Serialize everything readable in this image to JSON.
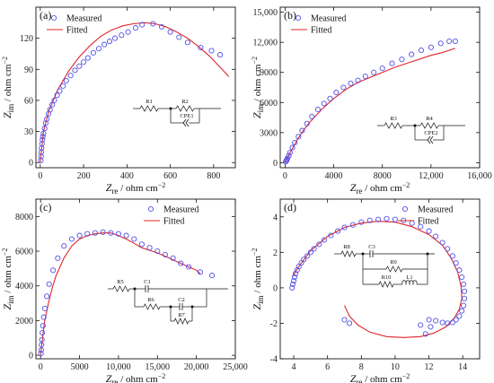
{
  "colors": {
    "measured": "#5050e8",
    "fitted": "#e0262b",
    "axis": "#111111"
  },
  "legend": {
    "measured": "Measured",
    "fitted": "Fitted"
  },
  "axes": {
    "xlabel_main": "Z",
    "xlabel_sub": "re",
    "ylabel_main": "Z",
    "ylabel_sub": "im",
    "unit": " / ohm cm",
    "unit_exp": "−2"
  },
  "chart_data": [
    {
      "panel": "(a)",
      "type": "scatter",
      "xlim": [
        -20,
        900
      ],
      "ylim": [
        -5,
        150
      ],
      "xticks": [
        0,
        200,
        400,
        600,
        800
      ],
      "yticks": [
        0,
        30,
        60,
        90,
        120
      ],
      "grid": false,
      "legend_position": "top-left",
      "series": [
        {
          "name": "Measured",
          "x": [
            3,
            4,
            5,
            6,
            8,
            10,
            12,
            15,
            20,
            25,
            30,
            38,
            45,
            55,
            65,
            78,
            90,
            105,
            120,
            140,
            160,
            180,
            200,
            220,
            245,
            270,
            295,
            320,
            345,
            375,
            405,
            440,
            470,
            520,
            560,
            600,
            640,
            680,
            740,
            790,
            830
          ],
          "y": [
            2,
            6,
            10,
            14,
            18,
            22,
            25,
            28,
            33,
            38,
            42,
            47,
            51,
            56,
            60,
            65,
            69,
            74,
            79,
            84,
            89,
            93,
            97,
            101,
            106,
            110,
            114,
            117,
            120,
            123,
            126,
            130,
            133,
            134,
            131,
            126,
            121,
            116,
            111,
            108,
            104
          ]
        },
        {
          "name": "Fitted",
          "x": [
            0,
            15,
            40,
            80,
            130,
            180,
            230,
            280,
            330,
            380,
            430,
            480,
            530,
            580,
            630,
            680,
            730,
            780,
            830,
            870
          ],
          "y": [
            0,
            30,
            50,
            70,
            88,
            102,
            113,
            122,
            128,
            132,
            134,
            135,
            134,
            131,
            126,
            120,
            112,
            103,
            92,
            83
          ]
        }
      ],
      "circuit": [
        "R1",
        "R2",
        "CPE1"
      ]
    },
    {
      "panel": "(b)",
      "type": "scatter",
      "xlim": [
        -400,
        16000
      ],
      "ylim": [
        -500,
        15500
      ],
      "xticks": [
        0,
        4000,
        8000,
        12000,
        16000
      ],
      "xticklabels": [
        "0",
        "4000",
        "8000",
        "12,000",
        "16,000"
      ],
      "yticks": [
        0,
        3000,
        6000,
        9000,
        12000,
        15000
      ],
      "yticklabels": [
        "0",
        "3000",
        "6000",
        "9000",
        "12,000",
        "15,000"
      ],
      "grid": false,
      "legend_position": "top-left",
      "series": [
        {
          "name": "Measured",
          "x": [
            50,
            100,
            150,
            200,
            300,
            400,
            600,
            800,
            1100,
            1400,
            1800,
            2200,
            2700,
            3200,
            3700,
            4200,
            4800,
            5400,
            6000,
            6600,
            7300,
            8000,
            8800,
            9600,
            10400,
            11200,
            12000,
            12800,
            13500,
            14000
          ],
          "y": [
            100,
            200,
            300,
            450,
            700,
            1000,
            1500,
            2000,
            2600,
            3200,
            3900,
            4600,
            5300,
            5900,
            6400,
            7000,
            7500,
            7900,
            8200,
            8600,
            9000,
            9400,
            9900,
            10300,
            10800,
            11200,
            11500,
            11900,
            12100,
            12100
          ]
        },
        {
          "name": "Fitted",
          "x": [
            0,
            500,
            1000,
            1500,
            2000,
            3000,
            4000,
            5000,
            6000,
            7000,
            8000,
            9000,
            10000,
            11000,
            12000,
            13000,
            14000
          ],
          "y": [
            0,
            1200,
            2300,
            3200,
            4000,
            5300,
            6400,
            7300,
            8000,
            8500,
            9000,
            9500,
            9900,
            10300,
            10700,
            11000,
            11400
          ]
        }
      ],
      "circuit": [
        "R3",
        "R4",
        "CPE2"
      ]
    },
    {
      "panel": "(c)",
      "type": "scatter",
      "xlim": [
        -600,
        25000
      ],
      "ylim": [
        -200,
        9000
      ],
      "xticks": [
        0,
        5000,
        10000,
        15000,
        20000,
        25000
      ],
      "xticklabels": [
        "0",
        "5000",
        "10,000",
        "15,000",
        "20,000",
        "25,000"
      ],
      "yticks": [
        0,
        2000,
        4000,
        6000,
        8000
      ],
      "grid": false,
      "legend_position": "top-right",
      "series": [
        {
          "name": "Measured",
          "x": [
            50,
            80,
            120,
            160,
            220,
            300,
            400,
            550,
            800,
            1100,
            1600,
            2200,
            3000,
            4000,
            5000,
            6000,
            7000,
            8000,
            9000,
            10000,
            11000,
            12000,
            13000,
            14000,
            15000,
            16000,
            17000,
            18000,
            19000,
            20500,
            22000
          ],
          "y": [
            100,
            300,
            600,
            900,
            1300,
            1700,
            2200,
            2700,
            3400,
            4100,
            4900,
            5600,
            6300,
            6700,
            6900,
            7000,
            7050,
            7100,
            7050,
            7000,
            6900,
            6700,
            6400,
            6200,
            6000,
            5800,
            5600,
            5300,
            5100,
            4800,
            4600
          ]
        },
        {
          "name": "Fitted",
          "x": [
            0,
            200,
            500,
            1000,
            1500,
            2000,
            3000,
            4000,
            5000,
            6000,
            7000,
            8000,
            9000,
            10000,
            11000,
            12000,
            13000,
            14000,
            15000,
            16000,
            17000,
            18000,
            19000,
            20000,
            20500
          ],
          "y": [
            0,
            800,
            1900,
            3000,
            3900,
            4600,
            5600,
            6300,
            6700,
            6900,
            7000,
            7050,
            7050,
            6900,
            6700,
            6450,
            6200,
            6050,
            5900,
            5700,
            5500,
            5300,
            5100,
            4900,
            4700
          ]
        }
      ],
      "circuit": [
        "R5",
        "C1",
        "R6",
        "C2",
        "R7"
      ]
    },
    {
      "panel": "(d)",
      "type": "scatter",
      "xlim": [
        3.2,
        15
      ],
      "ylim": [
        -4,
        5
      ],
      "xticks": [
        4,
        6,
        8,
        10,
        12,
        14
      ],
      "yticks": [
        -4,
        -2,
        0,
        2,
        4
      ],
      "grid": false,
      "legend_position": "top-right",
      "series": [
        {
          "name": "Measured",
          "x": [
            3.9,
            3.95,
            4.0,
            4.05,
            4.1,
            4.2,
            4.3,
            4.45,
            4.6,
            4.8,
            5.0,
            5.2,
            5.5,
            5.8,
            6.2,
            6.6,
            7.0,
            7.5,
            8.0,
            8.5,
            9.0,
            9.5,
            10.0,
            10.5,
            11.0,
            11.5,
            12.0,
            12.4,
            12.8,
            13.1,
            13.4,
            13.6,
            13.8,
            13.95,
            14.05,
            14.1,
            14.1,
            14.05,
            13.95,
            13.8,
            13.6,
            13.4,
            13.1,
            12.8,
            12.4,
            12.0,
            11.5,
            12.1,
            11.8,
            7.3,
            7.0
          ],
          "y": [
            0.0,
            0.2,
            0.4,
            0.6,
            0.8,
            1.0,
            1.2,
            1.4,
            1.6,
            1.8,
            2.0,
            2.2,
            2.45,
            2.7,
            2.95,
            3.2,
            3.4,
            3.55,
            3.7,
            3.8,
            3.85,
            3.9,
            3.85,
            3.8,
            3.65,
            3.45,
            3.2,
            2.9,
            2.55,
            2.2,
            1.8,
            1.4,
            1.0,
            0.6,
            0.2,
            -0.2,
            -0.6,
            -1.0,
            -1.3,
            -1.6,
            -1.8,
            -1.95,
            -2.0,
            -1.95,
            -1.85,
            -1.8,
            -2.1,
            -2.2,
            -2.6,
            -2.0,
            -1.8
          ]
        },
        {
          "name": "Fitted",
          "x": [
            3.9,
            4.3,
            5.0,
            6.0,
            7.0,
            8.0,
            9.0,
            10.0,
            11.0,
            12.0,
            12.8,
            13.3,
            13.7,
            13.9,
            13.95,
            13.8,
            13.5,
            13.0,
            12.3,
            11.5,
            10.5,
            9.5,
            8.5,
            7.8,
            7.3,
            7.0
          ],
          "y": [
            0.6,
            1.2,
            2.1,
            2.9,
            3.4,
            3.65,
            3.75,
            3.7,
            3.45,
            3.0,
            2.4,
            1.7,
            0.9,
            0.1,
            -0.6,
            -1.2,
            -1.7,
            -2.2,
            -2.55,
            -2.75,
            -2.8,
            -2.75,
            -2.5,
            -2.1,
            -1.6,
            -1.0
          ]
        }
      ],
      "circuit": [
        "R8",
        "C3",
        "R9",
        "R10",
        "L1"
      ]
    }
  ]
}
